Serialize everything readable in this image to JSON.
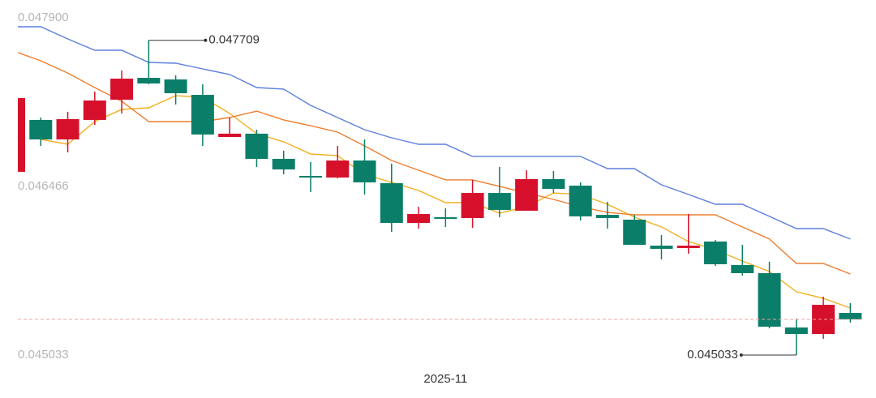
{
  "chart_data": {
    "type": "candlestick",
    "categories": [
      null,
      null,
      null,
      null,
      null,
      null,
      null,
      null,
      null,
      null,
      null,
      null,
      null,
      null,
      null,
      null,
      "2025-11",
      null,
      null,
      null,
      null,
      null,
      null,
      null,
      null,
      null,
      null,
      null,
      null,
      null,
      null,
      null
    ],
    "candles": [
      {
        "open": 0.046591,
        "high": 0.047218,
        "low": 0.046591,
        "close": 0.047218
      },
      {
        "open": 0.047032,
        "high": 0.047052,
        "low": 0.046811,
        "close": 0.046866
      },
      {
        "open": 0.046866,
        "high": 0.047101,
        "low": 0.046756,
        "close": 0.047039
      },
      {
        "open": 0.047032,
        "high": 0.047273,
        "low": 0.04699,
        "close": 0.047197
      },
      {
        "open": 0.047204,
        "high": 0.047452,
        "low": 0.047087,
        "close": 0.047383
      },
      {
        "open": 0.04739,
        "high": 0.047709,
        "low": 0.047335,
        "close": 0.047342
      },
      {
        "open": 0.047376,
        "high": 0.047411,
        "low": 0.047163,
        "close": 0.047259
      },
      {
        "open": 0.047245,
        "high": 0.047335,
        "low": 0.046811,
        "close": 0.046908
      },
      {
        "open": 0.046887,
        "high": 0.047052,
        "low": 0.046887,
        "close": 0.046915
      },
      {
        "open": 0.046915,
        "high": 0.046949,
        "low": 0.046632,
        "close": 0.046701
      },
      {
        "open": 0.046701,
        "high": 0.04677,
        "low": 0.04657,
        "close": 0.046611
      },
      {
        "open": 0.046556,
        "high": 0.046673,
        "low": 0.046418,
        "close": 0.046542
      },
      {
        "open": 0.046542,
        "high": 0.046811,
        "low": 0.046535,
        "close": 0.046687
      },
      {
        "open": 0.046687,
        "high": 0.046866,
        "low": 0.046398,
        "close": 0.046501
      },
      {
        "open": 0.046494,
        "high": 0.04666,
        "low": 0.046081,
        "close": 0.046156
      },
      {
        "open": 0.046156,
        "high": 0.046294,
        "low": 0.046108,
        "close": 0.046232
      },
      {
        "open": 0.046205,
        "high": 0.04628,
        "low": 0.046122,
        "close": 0.046191
      },
      {
        "open": 0.046198,
        "high": 0.046522,
        "low": 0.046115,
        "close": 0.046411
      },
      {
        "open": 0.046411,
        "high": 0.046632,
        "low": 0.046205,
        "close": 0.046267
      },
      {
        "open": 0.04626,
        "high": 0.046604,
        "low": 0.04626,
        "close": 0.046529
      },
      {
        "open": 0.046529,
        "high": 0.046597,
        "low": 0.046411,
        "close": 0.046446
      },
      {
        "open": 0.046473,
        "high": 0.046501,
        "low": 0.046177,
        "close": 0.046212
      },
      {
        "open": 0.046225,
        "high": 0.046336,
        "low": 0.046108,
        "close": 0.046198
      },
      {
        "open": 0.046184,
        "high": 0.046225,
        "low": 0.04597,
        "close": 0.04597
      },
      {
        "open": 0.045963,
        "high": 0.046053,
        "low": 0.045846,
        "close": 0.045936
      },
      {
        "open": 0.045943,
        "high": 0.046232,
        "low": 0.045895,
        "close": 0.045963
      },
      {
        "open": 0.045998,
        "high": 0.046012,
        "low": 0.045791,
        "close": 0.045805
      },
      {
        "open": 0.045798,
        "high": 0.04597,
        "low": 0.045708,
        "close": 0.045729
      },
      {
        "open": 0.045729,
        "high": 0.045826,
        "low": 0.04526,
        "close": 0.045274
      },
      {
        "open": 0.045267,
        "high": 0.045343,
        "low": 0.045033,
        "close": 0.045212
      },
      {
        "open": 0.045212,
        "high": 0.045529,
        "low": 0.045171,
        "close": 0.04546
      },
      {
        "open": 0.045391,
        "high": 0.045474,
        "low": 0.045309,
        "close": 0.045336
      }
    ],
    "up_color": "#d6102b",
    "down_color": "#0a7e69",
    "lines": [
      {
        "color": "#f2b01e",
        "values": [
          null,
          0.046866,
          0.046825,
          0.047018,
          0.047121,
          0.047135,
          0.047238,
          0.047225,
          0.047087,
          0.046915,
          0.046846,
          0.046742,
          0.046728,
          0.04657,
          0.046501,
          0.046432,
          0.046329,
          0.046329,
          0.046239,
          0.046294,
          0.046411,
          0.046398,
          0.046315,
          0.046205,
          0.046122,
          0.045998,
          0.045929,
          0.045832,
          0.045743,
          0.045571,
          0.045515,
          0.045433
        ]
      },
      {
        "color": "#ee7e2e",
        "values": [
          0.047617,
          0.047535,
          0.047431,
          0.047307,
          0.04719,
          0.047018,
          0.047018,
          0.047018,
          0.047052,
          0.047107,
          0.047032,
          0.046983,
          0.046928,
          0.046811,
          0.046687,
          0.046604,
          0.046522,
          0.046522,
          0.046467,
          0.046411,
          0.046356,
          0.046294,
          0.046246,
          0.046225,
          0.046225,
          0.046225,
          0.046225,
          0.046122,
          0.046019,
          0.045812,
          0.045812,
          0.045722
        ]
      },
      {
        "color": "#5b7fde",
        "values": [
          0.047824,
          0.047824,
          0.047721,
          0.047624,
          0.047624,
          0.047521,
          0.047514,
          0.047466,
          0.047418,
          0.047307,
          0.047294,
          0.047156,
          0.047052,
          0.046949,
          0.04688,
          0.046825,
          0.046825,
          0.046722,
          0.046722,
          0.046722,
          0.046722,
          0.046722,
          0.046618,
          0.046618,
          0.04648,
          0.046398,
          0.046315,
          0.046315,
          0.046212,
          0.046108,
          0.046108,
          0.046019
        ]
      }
    ],
    "ylim": [
      0.045033,
      0.0479
    ],
    "yticks": [
      0.045033,
      0.046466,
      {
        "value": 0.0479,
        "label": "0.047900"
      }
    ],
    "annotations": [
      {
        "value": 0.047709,
        "label": "0.047709"
      },
      {
        "value": 0.045033,
        "label": "0.045033"
      }
    ],
    "grid": false
  }
}
